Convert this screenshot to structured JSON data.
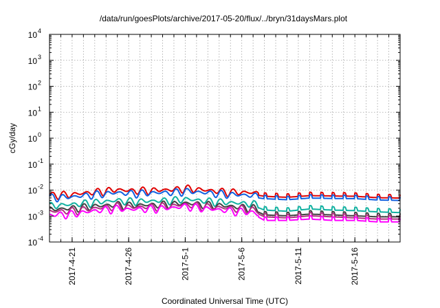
{
  "chart_data": {
    "type": "line",
    "title": "/data/run/goesPlots/archive/2017-05-20/flux/../bryn/31daysMars.plot",
    "xlabel": "Coordinated Universal Time (UTC)",
    "ylabel": "cGy/day",
    "yscale": "log",
    "ylim": [
      0.0001,
      10000
    ],
    "xlim": [
      "2017-04-19",
      "2017-05-20"
    ],
    "grid": true,
    "x_ticks": [
      "2017-4-21",
      "2017-4-26",
      "2017-5-1",
      "2017-5-6",
      "2017-5-11",
      "2017-5-16"
    ],
    "y_ticks": [
      {
        "value": 0.0001,
        "base": "10",
        "exp": "-4"
      },
      {
        "value": 0.001,
        "base": "10",
        "exp": "-3"
      },
      {
        "value": 0.01,
        "base": "10",
        "exp": "-2"
      },
      {
        "value": 0.1,
        "base": "10",
        "exp": "-1"
      },
      {
        "value": 1,
        "base": "10",
        "exp": "0"
      },
      {
        "value": 10,
        "base": "10",
        "exp": "1"
      },
      {
        "value": 100,
        "base": "10",
        "exp": "2"
      },
      {
        "value": 1000,
        "base": "10",
        "exp": "3"
      },
      {
        "value": 10000,
        "base": "10",
        "exp": "4"
      }
    ],
    "series": [
      {
        "color": "#e00000",
        "x": [
          "2017-04-19",
          "2017-04-21",
          "2017-04-23",
          "2017-04-25",
          "2017-04-26",
          "2017-04-28",
          "2017-04-30",
          "2017-05-01",
          "2017-05-03",
          "2017-05-05",
          "2017-05-06",
          "2017-05-07",
          "2017-05-08",
          "2017-05-10",
          "2017-05-12",
          "2017-05-14",
          "2017-05-16",
          "2017-05-18",
          "2017-05-20"
        ],
        "values": [
          0.0065,
          0.0068,
          0.0085,
          0.0105,
          0.0095,
          0.0098,
          0.0105,
          0.0118,
          0.0098,
          0.0085,
          0.0082,
          0.008,
          0.0068,
          0.0062,
          0.0072,
          0.007,
          0.0068,
          0.006,
          0.0058
        ]
      },
      {
        "color": "#1060e0",
        "x": [
          "2017-04-19",
          "2017-04-21",
          "2017-04-23",
          "2017-04-25",
          "2017-04-26",
          "2017-04-28",
          "2017-04-30",
          "2017-05-01",
          "2017-05-03",
          "2017-05-05",
          "2017-05-06",
          "2017-05-07",
          "2017-05-08",
          "2017-05-10",
          "2017-05-12",
          "2017-05-14",
          "2017-05-16",
          "2017-05-18",
          "2017-05-20"
        ],
        "values": [
          0.0052,
          0.0055,
          0.0068,
          0.008,
          0.0075,
          0.0078,
          0.0082,
          0.0092,
          0.0078,
          0.0068,
          0.0065,
          0.0062,
          0.0055,
          0.005,
          0.0058,
          0.0056,
          0.0055,
          0.0049,
          0.0047
        ]
      },
      {
        "color": "#10b0a0",
        "x": [
          "2017-04-19",
          "2017-04-21",
          "2017-04-23",
          "2017-04-25",
          "2017-04-26",
          "2017-04-28",
          "2017-04-30",
          "2017-05-01",
          "2017-05-03",
          "2017-05-05",
          "2017-05-06",
          "2017-05-07",
          "2017-05-08",
          "2017-05-10",
          "2017-05-12",
          "2017-05-14",
          "2017-05-16",
          "2017-05-18",
          "2017-05-20"
        ],
        "values": [
          0.0025,
          0.0028,
          0.0034,
          0.004,
          0.0037,
          0.0038,
          0.0041,
          0.0045,
          0.0038,
          0.0033,
          0.0031,
          0.003,
          0.002,
          0.0018,
          0.0022,
          0.002,
          0.0019,
          0.0017,
          0.0016
        ]
      },
      {
        "color": "#404040",
        "x": [
          "2017-04-19",
          "2017-04-21",
          "2017-04-23",
          "2017-04-25",
          "2017-04-26",
          "2017-04-28",
          "2017-04-30",
          "2017-05-01",
          "2017-05-03",
          "2017-05-05",
          "2017-05-06",
          "2017-05-07",
          "2017-05-08",
          "2017-05-10",
          "2017-05-12",
          "2017-05-14",
          "2017-05-16",
          "2017-05-18",
          "2017-05-20"
        ],
        "values": [
          0.0018,
          0.002,
          0.0024,
          0.0028,
          0.0026,
          0.0027,
          0.0029,
          0.0032,
          0.0027,
          0.0024,
          0.0022,
          0.0021,
          0.0013,
          0.0012,
          0.0014,
          0.0013,
          0.0012,
          0.0011,
          0.0011
        ]
      },
      {
        "color": "#b03080",
        "x": [
          "2017-04-19",
          "2017-04-21",
          "2017-04-23",
          "2017-04-25",
          "2017-04-26",
          "2017-04-28",
          "2017-04-30",
          "2017-05-01",
          "2017-05-03",
          "2017-05-05",
          "2017-05-06",
          "2017-05-07",
          "2017-05-08",
          "2017-05-10",
          "2017-05-12",
          "2017-05-14",
          "2017-05-16",
          "2017-05-18",
          "2017-05-20"
        ],
        "values": [
          0.0015,
          0.0016,
          0.002,
          0.0024,
          0.0022,
          0.0023,
          0.0025,
          0.0028,
          0.0023,
          0.002,
          0.0019,
          0.0018,
          0.0011,
          0.001,
          0.0012,
          0.0011,
          0.001,
          0.0009,
          0.0009
        ]
      },
      {
        "color": "#ff00ff",
        "x": [
          "2017-04-19",
          "2017-04-21",
          "2017-04-23",
          "2017-04-25",
          "2017-04-26",
          "2017-04-28",
          "2017-04-30",
          "2017-05-01",
          "2017-05-03",
          "2017-05-05",
          "2017-05-06",
          "2017-05-07",
          "2017-05-08",
          "2017-05-10",
          "2017-05-12",
          "2017-05-14",
          "2017-05-16",
          "2017-05-18",
          "2017-05-20"
        ],
        "values": [
          0.0011,
          0.0012,
          0.0016,
          0.002,
          0.0018,
          0.0019,
          0.0021,
          0.0024,
          0.0019,
          0.0016,
          0.0015,
          0.0014,
          0.0008,
          0.0008,
          0.0009,
          0.0008,
          0.0008,
          0.0007,
          0.0007
        ]
      }
    ]
  }
}
